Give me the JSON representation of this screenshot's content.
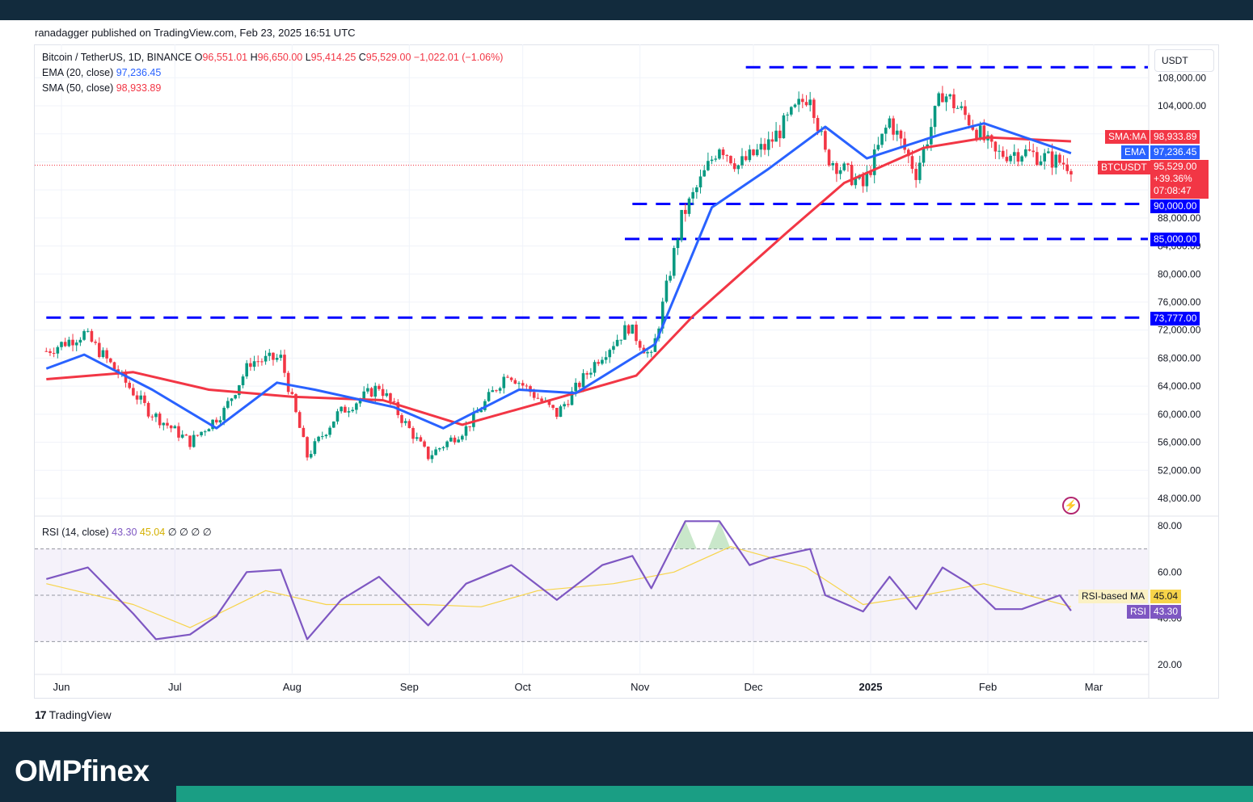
{
  "header": {
    "published": "ranadagger published on TradingView.com, Feb 23, 2025 16:51 UTC"
  },
  "legend": {
    "symbol": "Bitcoin / TetherUS, 1D, BINANCE",
    "o_label": "O",
    "open": "96,551.01",
    "h_label": "H",
    "high": "96,650.00",
    "l_label": "L",
    "low": "95,414.25",
    "c_label": "C",
    "close": "95,529.00",
    "change": "−1,022.01 (−1.06%)",
    "ema_label": "EMA (20, close)",
    "ema_value": "97,236.45",
    "sma_label": "SMA (50, close)",
    "sma_value": "98,933.89",
    "rsi_label": "RSI (14, close)",
    "rsi_value": "43.30",
    "rsi_ma_value": "45.04",
    "rsi_extra": "∅ ∅ ∅ ∅"
  },
  "currency": "USDT",
  "tags": {
    "sma_label": "SMA:MA",
    "sma_value": "98,933.89",
    "ema_label": "EMA",
    "ema_value": "97,236.45",
    "price_label": "BTCUSDT",
    "price_value": "95,529.00",
    "price_change": "+39.36%",
    "countdown": "07:08:47",
    "rsi_ma_label": "RSI-based MA",
    "rsi_ma_value": "45.04",
    "rsi_label": "RSI",
    "rsi_value": "43.30"
  },
  "levels": [
    {
      "value": "90,000.00",
      "price": 90000
    },
    {
      "value": "85,000.00",
      "price": 85000
    },
    {
      "value": "73,777.00",
      "price": 73777
    }
  ],
  "footer": {
    "tradingview": "TradingView",
    "brand": "OMPfinex"
  },
  "colors": {
    "up": "#089981",
    "down": "#f23645",
    "ema": "#2962ff",
    "sma": "#f23645",
    "level": "#0000ff",
    "rsi": "#7e57c2",
    "rsi_ma": "#f7d44a"
  },
  "chart_data": [
    {
      "type": "candlestick",
      "title": "Bitcoin / TetherUS, 1D, BINANCE",
      "x_ticks": [
        "Jun",
        "Jul",
        "Aug",
        "Sep",
        "Oct",
        "Nov",
        "Dec",
        "2025",
        "Feb",
        "Mar"
      ],
      "y_ticks": [
        "108,000.00",
        "104,000.00",
        "88,000.00",
        "84,000.00",
        "80,000.00",
        "76,000.00",
        "72,000.00",
        "68,000.00",
        "64,000.00",
        "60,000.00",
        "56,000.00",
        "52,000.00",
        "48,000.00"
      ],
      "ylim": [
        45000,
        109500
      ],
      "resistance_top": 109500,
      "series": [
        {
          "name": "BTCUSDT close (approx)",
          "points": [
            [
              "2024-05-28",
              69000
            ],
            [
              "2024-06-07",
              71500
            ],
            [
              "2024-06-15",
              66500
            ],
            [
              "2024-06-24",
              60500
            ],
            [
              "2024-07-05",
              56000
            ],
            [
              "2024-07-14",
              60500
            ],
            [
              "2024-07-21",
              67500
            ],
            [
              "2024-07-29",
              68000
            ],
            [
              "2024-08-05",
              54000
            ],
            [
              "2024-08-13",
              60000
            ],
            [
              "2024-08-24",
              64000
            ],
            [
              "2024-09-06",
              54000
            ],
            [
              "2024-09-16",
              58000
            ],
            [
              "2024-09-27",
              66000
            ],
            [
              "2024-10-10",
              60000
            ],
            [
              "2024-10-21",
              68000
            ],
            [
              "2024-10-29",
              72500
            ],
            [
              "2024-11-04",
              68000
            ],
            [
              "2024-11-12",
              88000
            ],
            [
              "2024-11-22",
              98500
            ],
            [
              "2024-11-27",
              95500
            ],
            [
              "2024-12-05",
              98500
            ],
            [
              "2024-12-16",
              106000
            ],
            [
              "2024-12-20",
              97000
            ],
            [
              "2024-12-30",
              92500
            ],
            [
              "2025-01-06",
              102000
            ],
            [
              "2025-01-13",
              94500
            ],
            [
              "2025-01-20",
              106000
            ],
            [
              "2025-01-27",
              102000
            ],
            [
              "2025-02-03",
              97000
            ],
            [
              "2025-02-10",
              97500
            ],
            [
              "2025-02-23",
              95529
            ]
          ]
        },
        {
          "name": "EMA (20, close)",
          "points": [
            [
              "2024-05-28",
              66500
            ],
            [
              "2024-06-07",
              68500
            ],
            [
              "2024-06-25",
              63500
            ],
            [
              "2024-07-12",
              58000
            ],
            [
              "2024-07-28",
              64500
            ],
            [
              "2024-08-07",
              63500
            ],
            [
              "2024-08-28",
              61000
            ],
            [
              "2024-09-10",
              58000
            ],
            [
              "2024-09-30",
              63500
            ],
            [
              "2024-10-15",
              63000
            ],
            [
              "2024-10-30",
              68000
            ],
            [
              "2024-11-05",
              70000
            ],
            [
              "2024-11-20",
              89500
            ],
            [
              "2024-12-05",
              95000
            ],
            [
              "2024-12-20",
              101000
            ],
            [
              "2024-12-31",
              96500
            ],
            [
              "2025-01-20",
              100000
            ],
            [
              "2025-01-31",
              101500
            ],
            [
              "2025-02-23",
              97236
            ]
          ]
        },
        {
          "name": "SMA (50, close)",
          "points": [
            [
              "2024-05-28",
              65000
            ],
            [
              "2024-06-20",
              66000
            ],
            [
              "2024-07-10",
              63500
            ],
            [
              "2024-08-01",
              62500
            ],
            [
              "2024-08-25",
              62000
            ],
            [
              "2024-09-15",
              58500
            ],
            [
              "2024-10-05",
              61500
            ],
            [
              "2024-10-31",
              65500
            ],
            [
              "2024-11-15",
              74000
            ],
            [
              "2024-12-10",
              86000
            ],
            [
              "2024-12-25",
              93000
            ],
            [
              "2025-01-15",
              98000
            ],
            [
              "2025-02-01",
              99500
            ],
            [
              "2025-02-23",
              98934
            ]
          ]
        }
      ],
      "levels": [
        109500,
        90000,
        85000,
        73777
      ]
    },
    {
      "type": "line",
      "title": "RSI (14, close)",
      "y_ticks": [
        "80.00",
        "60.00",
        "40.00",
        "20.00"
      ],
      "ylim": [
        15,
        83
      ],
      "bands": [
        70,
        30
      ],
      "series": [
        {
          "name": "RSI",
          "points": [
            [
              "2024-05-28",
              57
            ],
            [
              "2024-06-08",
              62
            ],
            [
              "2024-06-20",
              42
            ],
            [
              "2024-06-26",
              31
            ],
            [
              "2024-07-05",
              33
            ],
            [
              "2024-07-12",
              41
            ],
            [
              "2024-07-20",
              60
            ],
            [
              "2024-07-29",
              61
            ],
            [
              "2024-08-05",
              31
            ],
            [
              "2024-08-14",
              48
            ],
            [
              "2024-08-24",
              58
            ],
            [
              "2024-09-06",
              37
            ],
            [
              "2024-09-16",
              55
            ],
            [
              "2024-09-28",
              63
            ],
            [
              "2024-10-10",
              48
            ],
            [
              "2024-10-22",
              63
            ],
            [
              "2024-10-30",
              67
            ],
            [
              "2024-11-04",
              53
            ],
            [
              "2024-11-13",
              82
            ],
            [
              "2024-11-22",
              82
            ],
            [
              "2024-11-30",
              63
            ],
            [
              "2024-12-05",
              66
            ],
            [
              "2024-12-16",
              70
            ],
            [
              "2024-12-20",
              50
            ],
            [
              "2024-12-30",
              43
            ],
            [
              "2025-01-06",
              58
            ],
            [
              "2025-01-13",
              44
            ],
            [
              "2025-01-20",
              62
            ],
            [
              "2025-01-27",
              55
            ],
            [
              "2025-02-03",
              44
            ],
            [
              "2025-02-10",
              44
            ],
            [
              "2025-02-20",
              50
            ],
            [
              "2025-02-23",
              43.3
            ]
          ]
        },
        {
          "name": "RSI-based MA",
          "points": [
            [
              "2024-05-28",
              55
            ],
            [
              "2024-06-20",
              46
            ],
            [
              "2024-07-05",
              36
            ],
            [
              "2024-07-25",
              52
            ],
            [
              "2024-08-10",
              46
            ],
            [
              "2024-09-05",
              46
            ],
            [
              "2024-09-20",
              45
            ],
            [
              "2024-10-05",
              52
            ],
            [
              "2024-10-25",
              55
            ],
            [
              "2024-11-10",
              60
            ],
            [
              "2024-11-25",
              71
            ],
            [
              "2024-12-15",
              62
            ],
            [
              "2024-12-30",
              46
            ],
            [
              "2025-01-15",
              50
            ],
            [
              "2025-01-31",
              55
            ],
            [
              "2025-02-23",
              45.04
            ]
          ]
        }
      ]
    }
  ]
}
